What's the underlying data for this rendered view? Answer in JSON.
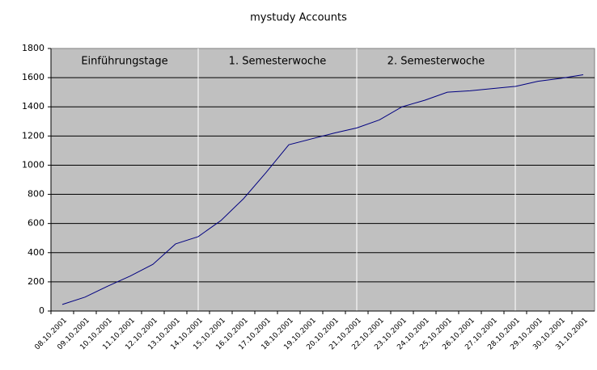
{
  "chart_data": {
    "type": "line",
    "title": "mystudy Accounts",
    "categories": [
      "08.10.2001",
      "09.10.2001",
      "10.10.2001",
      "11.10.2001",
      "12.10.2001",
      "13.10.2001",
      "14.10.2001",
      "15.10.2001",
      "16.10.2001",
      "17.10.2001",
      "18.10.2001",
      "19.10.2001",
      "20.10.2001",
      "21.10.2001",
      "22.10.2001",
      "23.10.2001",
      "24.10.2001",
      "25.10.2001",
      "26.10.2001",
      "27.10.2001",
      "28.10.2001",
      "29.10.2001",
      "30.10.2001",
      "31.10.2001"
    ],
    "series": [
      {
        "name": "Accounts",
        "color": "#000080",
        "values": [
          45,
          95,
          170,
          240,
          320,
          460,
          510,
          620,
          770,
          950,
          1140,
          1180,
          1220,
          1255,
          1310,
          1400,
          1445,
          1500,
          1510,
          1525,
          1540,
          1575,
          1595,
          1620
        ]
      }
    ],
    "ylim": [
      0,
      1800
    ],
    "yticks": [
      0,
      200,
      400,
      600,
      800,
      1000,
      1200,
      1400,
      1600,
      1800
    ],
    "grid": true,
    "annotations": [
      "Einführungstage",
      "1. Semesterwoche",
      "2. Semesterwoche"
    ]
  }
}
